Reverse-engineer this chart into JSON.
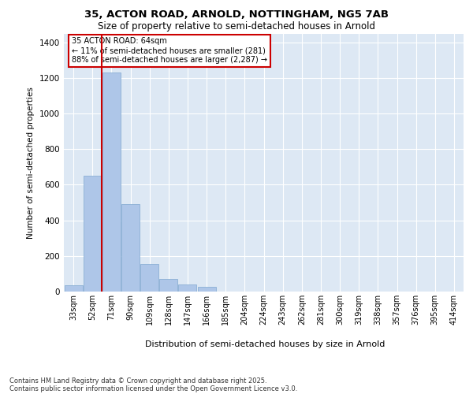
{
  "title_line1": "35, ACTON ROAD, ARNOLD, NOTTINGHAM, NG5 7AB",
  "title_line2": "Size of property relative to semi-detached houses in Arnold",
  "xlabel": "Distribution of semi-detached houses by size in Arnold",
  "ylabel": "Number of semi-detached properties",
  "bin_labels": [
    "33sqm",
    "52sqm",
    "71sqm",
    "90sqm",
    "109sqm",
    "128sqm",
    "147sqm",
    "166sqm",
    "185sqm",
    "204sqm",
    "224sqm",
    "243sqm",
    "262sqm",
    "281sqm",
    "300sqm",
    "319sqm",
    "338sqm",
    "357sqm",
    "376sqm",
    "395sqm",
    "414sqm"
  ],
  "bar_values": [
    35,
    650,
    1230,
    490,
    155,
    70,
    40,
    25,
    0,
    0,
    0,
    0,
    0,
    0,
    0,
    0,
    0,
    0,
    0,
    0,
    0
  ],
  "bar_color": "#aec6e8",
  "bar_edge_color": "#7fa8d0",
  "red_line_x": 1.5,
  "annotation_title": "35 ACTON ROAD: 64sqm",
  "annotation_line2": "← 11% of semi-detached houses are smaller (281)",
  "annotation_line3": "88% of semi-detached houses are larger (2,287) →",
  "annotation_box_color": "#cc0000",
  "ylim": [
    0,
    1450
  ],
  "yticks": [
    0,
    200,
    400,
    600,
    800,
    1000,
    1200,
    1400
  ],
  "background_color": "#dde8f4",
  "footer_line1": "Contains HM Land Registry data © Crown copyright and database right 2025.",
  "footer_line2": "Contains public sector information licensed under the Open Government Licence v3.0."
}
